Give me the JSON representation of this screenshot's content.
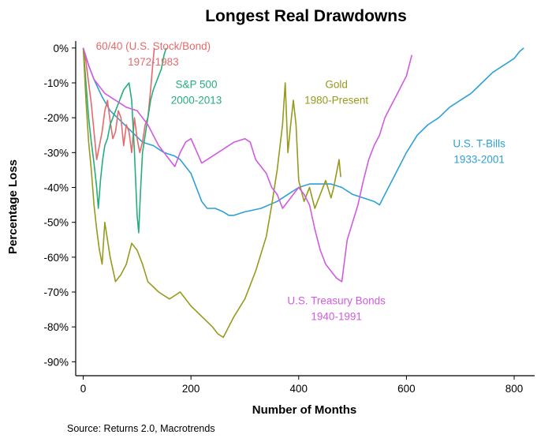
{
  "chart_data": {
    "type": "line",
    "title": "Longest Real Drawdowns",
    "xlabel": "Number of Months",
    "ylabel": "Percentage Loss",
    "xlim": [
      -14,
      838
    ],
    "ylim": [
      -94,
      2
    ],
    "xticks": [
      0,
      200,
      400,
      600,
      800
    ],
    "xtick_labels": [
      "0",
      "200",
      "400",
      "600",
      "800"
    ],
    "yticks": [
      0,
      -10,
      -20,
      -30,
      -40,
      -50,
      -60,
      -70,
      -80,
      -90
    ],
    "ytick_labels": [
      "0%",
      "-10%",
      "-20%",
      "-30%",
      "-40%",
      "-50%",
      "-60%",
      "-70%",
      "-80%",
      "-90%"
    ],
    "grid": false,
    "legend": "none (direct labels)",
    "source_note": "Source: Returns 2.0, Macrotrends",
    "series": [
      {
        "name": "U.S. T-Bills",
        "years": "1933-2001",
        "color": "#2DA0D8",
        "x": [
          0,
          10,
          20,
          35,
          50,
          70,
          90,
          110,
          130,
          150,
          170,
          180,
          200,
          210,
          220,
          230,
          245,
          260,
          270,
          280,
          300,
          330,
          360,
          380,
          400,
          420,
          440,
          460,
          480,
          500,
          520,
          540,
          550,
          560,
          580,
          600,
          620,
          640,
          660,
          680,
          700,
          720,
          740,
          760,
          780,
          800,
          810,
          818
        ],
        "y": [
          0,
          -5,
          -9,
          -14,
          -18,
          -21,
          -24,
          -27,
          -28,
          -30,
          -31,
          -32,
          -36,
          -40,
          -44,
          -46,
          -46,
          -47,
          -48,
          -48,
          -47,
          -46,
          -44,
          -42,
          -40,
          -39,
          -39,
          -39,
          -40,
          -42,
          -43,
          -44,
          -45,
          -42,
          -36,
          -30,
          -25,
          -22,
          -20,
          -17,
          -15,
          -13,
          -10,
          -7,
          -5,
          -3,
          -1,
          0
        ]
      },
      {
        "name": "60/40 (U.S. Stock/Bond)",
        "years": "1972-1983",
        "color": "#E8696B",
        "x": [
          0,
          5,
          10,
          15,
          20,
          25,
          30,
          35,
          40,
          45,
          50,
          55,
          60,
          65,
          70,
          75,
          80,
          85,
          90,
          95,
          100,
          105,
          110,
          115,
          120,
          125,
          130,
          132
        ],
        "y": [
          0,
          -4,
          -10,
          -16,
          -24,
          -32,
          -28,
          -24,
          -18,
          -15,
          -21,
          -26,
          -24,
          -18,
          -20,
          -28,
          -22,
          -24,
          -30,
          -20,
          -26,
          -30,
          -27,
          -22,
          -20,
          -12,
          -3,
          0
        ]
      },
      {
        "name": "S&P 500",
        "years": "2000-2013",
        "color": "#25AE7C",
        "x": [
          0,
          5,
          10,
          15,
          20,
          25,
          28,
          32,
          36,
          40,
          45,
          50,
          55,
          60,
          65,
          70,
          75,
          80,
          85,
          90,
          95,
          100,
          103,
          106,
          110,
          115,
          120,
          125,
          130,
          135,
          140,
          145,
          150,
          154
        ],
        "y": [
          0,
          -10,
          -20,
          -27,
          -33,
          -40,
          -46,
          -38,
          -32,
          -28,
          -26,
          -22,
          -20,
          -18,
          -16,
          -14,
          -12,
          -11,
          -10,
          -15,
          -30,
          -48,
          -53,
          -42,
          -30,
          -25,
          -20,
          -15,
          -12,
          -10,
          -8,
          -6,
          -2,
          0
        ]
      },
      {
        "name": "Gold",
        "years": "1980-Present",
        "color": "#979A1C",
        "x": [
          0,
          5,
          10,
          15,
          20,
          25,
          30,
          35,
          40,
          50,
          60,
          70,
          80,
          90,
          100,
          110,
          120,
          140,
          160,
          180,
          200,
          220,
          240,
          250,
          260,
          280,
          300,
          320,
          340,
          350,
          360,
          370,
          375,
          380,
          385,
          390,
          395,
          400,
          410,
          420,
          430,
          440,
          450,
          460,
          465,
          470,
          475,
          478
        ],
        "y": [
          0,
          -15,
          -27,
          -35,
          -45,
          -52,
          -58,
          -62,
          -50,
          -60,
          -67,
          -65,
          -62,
          -56,
          -58,
          -62,
          -67,
          -70,
          -72,
          -70,
          -74,
          -77,
          -80,
          -82,
          -83,
          -77,
          -72,
          -64,
          -54,
          -45,
          -35,
          -22,
          -10,
          -30,
          -22,
          -15,
          -22,
          -38,
          -44,
          -40,
          -46,
          -42,
          -38,
          -43,
          -40,
          -36,
          -32,
          -37
        ]
      },
      {
        "name": "U.S. Treasury Bonds",
        "years": "1940-1991",
        "color": "#D15BE0",
        "x": [
          0,
          10,
          20,
          40,
          60,
          80,
          100,
          120,
          140,
          150,
          160,
          170,
          180,
          190,
          200,
          220,
          240,
          260,
          280,
          300,
          310,
          320,
          330,
          340,
          350,
          360,
          370,
          380,
          390,
          400,
          410,
          420,
          430,
          440,
          450,
          460,
          470,
          480,
          490,
          500,
          510,
          520,
          530,
          540,
          550,
          560,
          570,
          580,
          590,
          600,
          605,
          610
        ],
        "y": [
          0,
          -5,
          -9,
          -13,
          -15,
          -17,
          -18,
          -22,
          -28,
          -30,
          -32,
          -34,
          -30,
          -27,
          -26,
          -33,
          -31,
          -29,
          -27,
          -26,
          -27,
          -32,
          -34,
          -36,
          -40,
          -42,
          -46,
          -44,
          -42,
          -40,
          -42,
          -45,
          -52,
          -58,
          -62,
          -64,
          -66,
          -67,
          -55,
          -50,
          -45,
          -38,
          -32,
          -28,
          -25,
          -20,
          -17,
          -14,
          -11,
          -8,
          -5,
          -2
        ]
      }
    ],
    "labels": [
      {
        "series": 1,
        "lines": [
          "60/40 (U.S. Stock/Bond)",
          "1972-1983"
        ],
        "anchor_month": 130,
        "anchor_pct": -0.5
      },
      {
        "series": 2,
        "lines": [
          "S&P 500",
          "2000-2013"
        ],
        "anchor_month": 210,
        "anchor_pct": -11.5
      },
      {
        "series": 3,
        "lines": [
          "Gold",
          "1980-Present"
        ],
        "anchor_month": 470,
        "anchor_pct": -11.5
      },
      {
        "series": 0,
        "lines": [
          "U.S. T-Bills",
          "1933-2001"
        ],
        "anchor_month": 735,
        "anchor_pct": -28.5
      },
      {
        "series": 4,
        "lines": [
          "U.S. Treasury Bonds",
          "1940-1991"
        ],
        "anchor_month": 470,
        "anchor_pct": -73.5
      }
    ]
  }
}
